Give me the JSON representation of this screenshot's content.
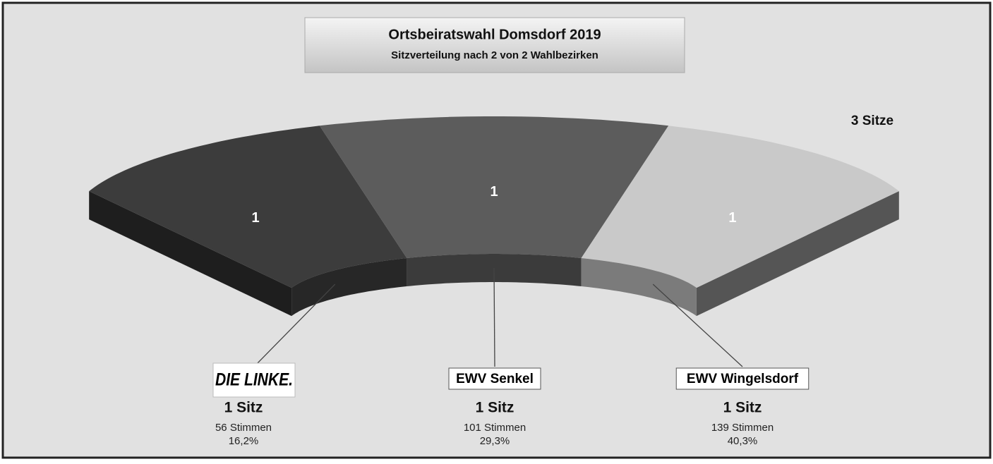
{
  "chart_data": {
    "type": "seat-arc",
    "title": "Ortsbeiratswahl Domsdorf 2019",
    "subtitle": "Sitzverteilung nach 2 von 2 Wahlbezirken",
    "total_label": "3 Sitze",
    "categories": [
      "DIE LINKE.",
      "EWV Senkel",
      "EWV Wingelsdorf"
    ],
    "values": [
      1,
      1,
      1
    ],
    "colors": [
      "#3c3c3c",
      "#5c5c5c",
      "#c9c9c9"
    ],
    "front_colors": [
      "#272727",
      "#3b3b3b",
      "#7b7b7b"
    ],
    "seat_labels": [
      "1 Sitz",
      "1 Sitz",
      "1 Sitz"
    ],
    "vote_labels": [
      "56 Stimmen",
      "101 Stimmen",
      "139 Stimmen"
    ],
    "share_labels": [
      "16,2%",
      "29,3%",
      "40,3%"
    ]
  }
}
